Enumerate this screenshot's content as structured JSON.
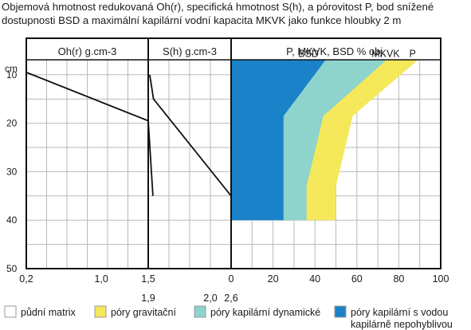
{
  "title": {
    "line1": "Objemová hmotnost redukovaná Oh(r), specifická hmotnost S(h), a pórovitost P, bod snížené",
    "line2": "dostupnosti BSD a maximální kapilární vodní kapacita MKVK jako funkce hloubky 2 m"
  },
  "colors": {
    "gravitational": "#f5e85a",
    "capillary_dynamic": "#8ed3cc",
    "capillary_immobile": "#1a82c9",
    "soil_matrix": "#ffffff",
    "grid": "#b9b9b9",
    "frame": "#111111"
  },
  "chart_data": [
    {
      "type": "line",
      "title": "Oh(r) g.cm-3",
      "ylabel": "cm",
      "ylim": [
        0,
        50
      ],
      "y_inverted": true,
      "y_ticks": [
        "10",
        "20",
        "30",
        "40",
        "50"
      ],
      "xlim": [
        0.2,
        1.5
      ],
      "x_ticks": [
        "0,2",
        "1,0",
        "1,5"
      ],
      "grid": true,
      "series": [
        {
          "x": [
            0.2,
            1.5,
            1.55
          ],
          "y": [
            9.5,
            19.5,
            35
          ]
        }
      ]
    },
    {
      "type": "line",
      "title": "S(h) g.cm-3",
      "ylim": [
        0,
        50
      ],
      "y_inverted": true,
      "xlim": [
        1.5,
        2.6
      ],
      "x_ticks": [
        "1,9",
        "2,0",
        "2,6"
      ],
      "grid": true,
      "series": [
        {
          "x": [
            1.52,
            1.57,
            2.6
          ],
          "y": [
            10,
            15,
            35
          ]
        }
      ]
    },
    {
      "type": "area",
      "title": "P, MKVK, BSD % obj.",
      "ylim": [
        0,
        50
      ],
      "y_inverted": true,
      "xlim": [
        0,
        100
      ],
      "x_ticks": [
        "0",
        "20",
        "40",
        "60",
        "80",
        "100"
      ],
      "grid": true,
      "series": [
        {
          "name": "BSD",
          "x": [
            45,
            25,
            25
          ],
          "y": [
            7,
            18.5,
            40
          ]
        },
        {
          "name": "MKVK",
          "x": [
            74,
            44,
            36,
            36
          ],
          "y": [
            7,
            18.5,
            33,
            40
          ]
        },
        {
          "name": "P",
          "x": [
            89,
            58,
            50,
            50
          ],
          "y": [
            7,
            18.5,
            33,
            40
          ]
        }
      ],
      "legend": [
        {
          "label": "půdní matrix",
          "color": "#ffffff"
        },
        {
          "label": "póry gravitační",
          "color": "#f5e85a"
        },
        {
          "label": "póry kapilární dynamické",
          "color": "#8ed3cc"
        },
        {
          "label": "póry kapilární s vodou",
          "label2": "kapilárně nepohyblivou",
          "color": "#1a82c9"
        }
      ]
    }
  ]
}
